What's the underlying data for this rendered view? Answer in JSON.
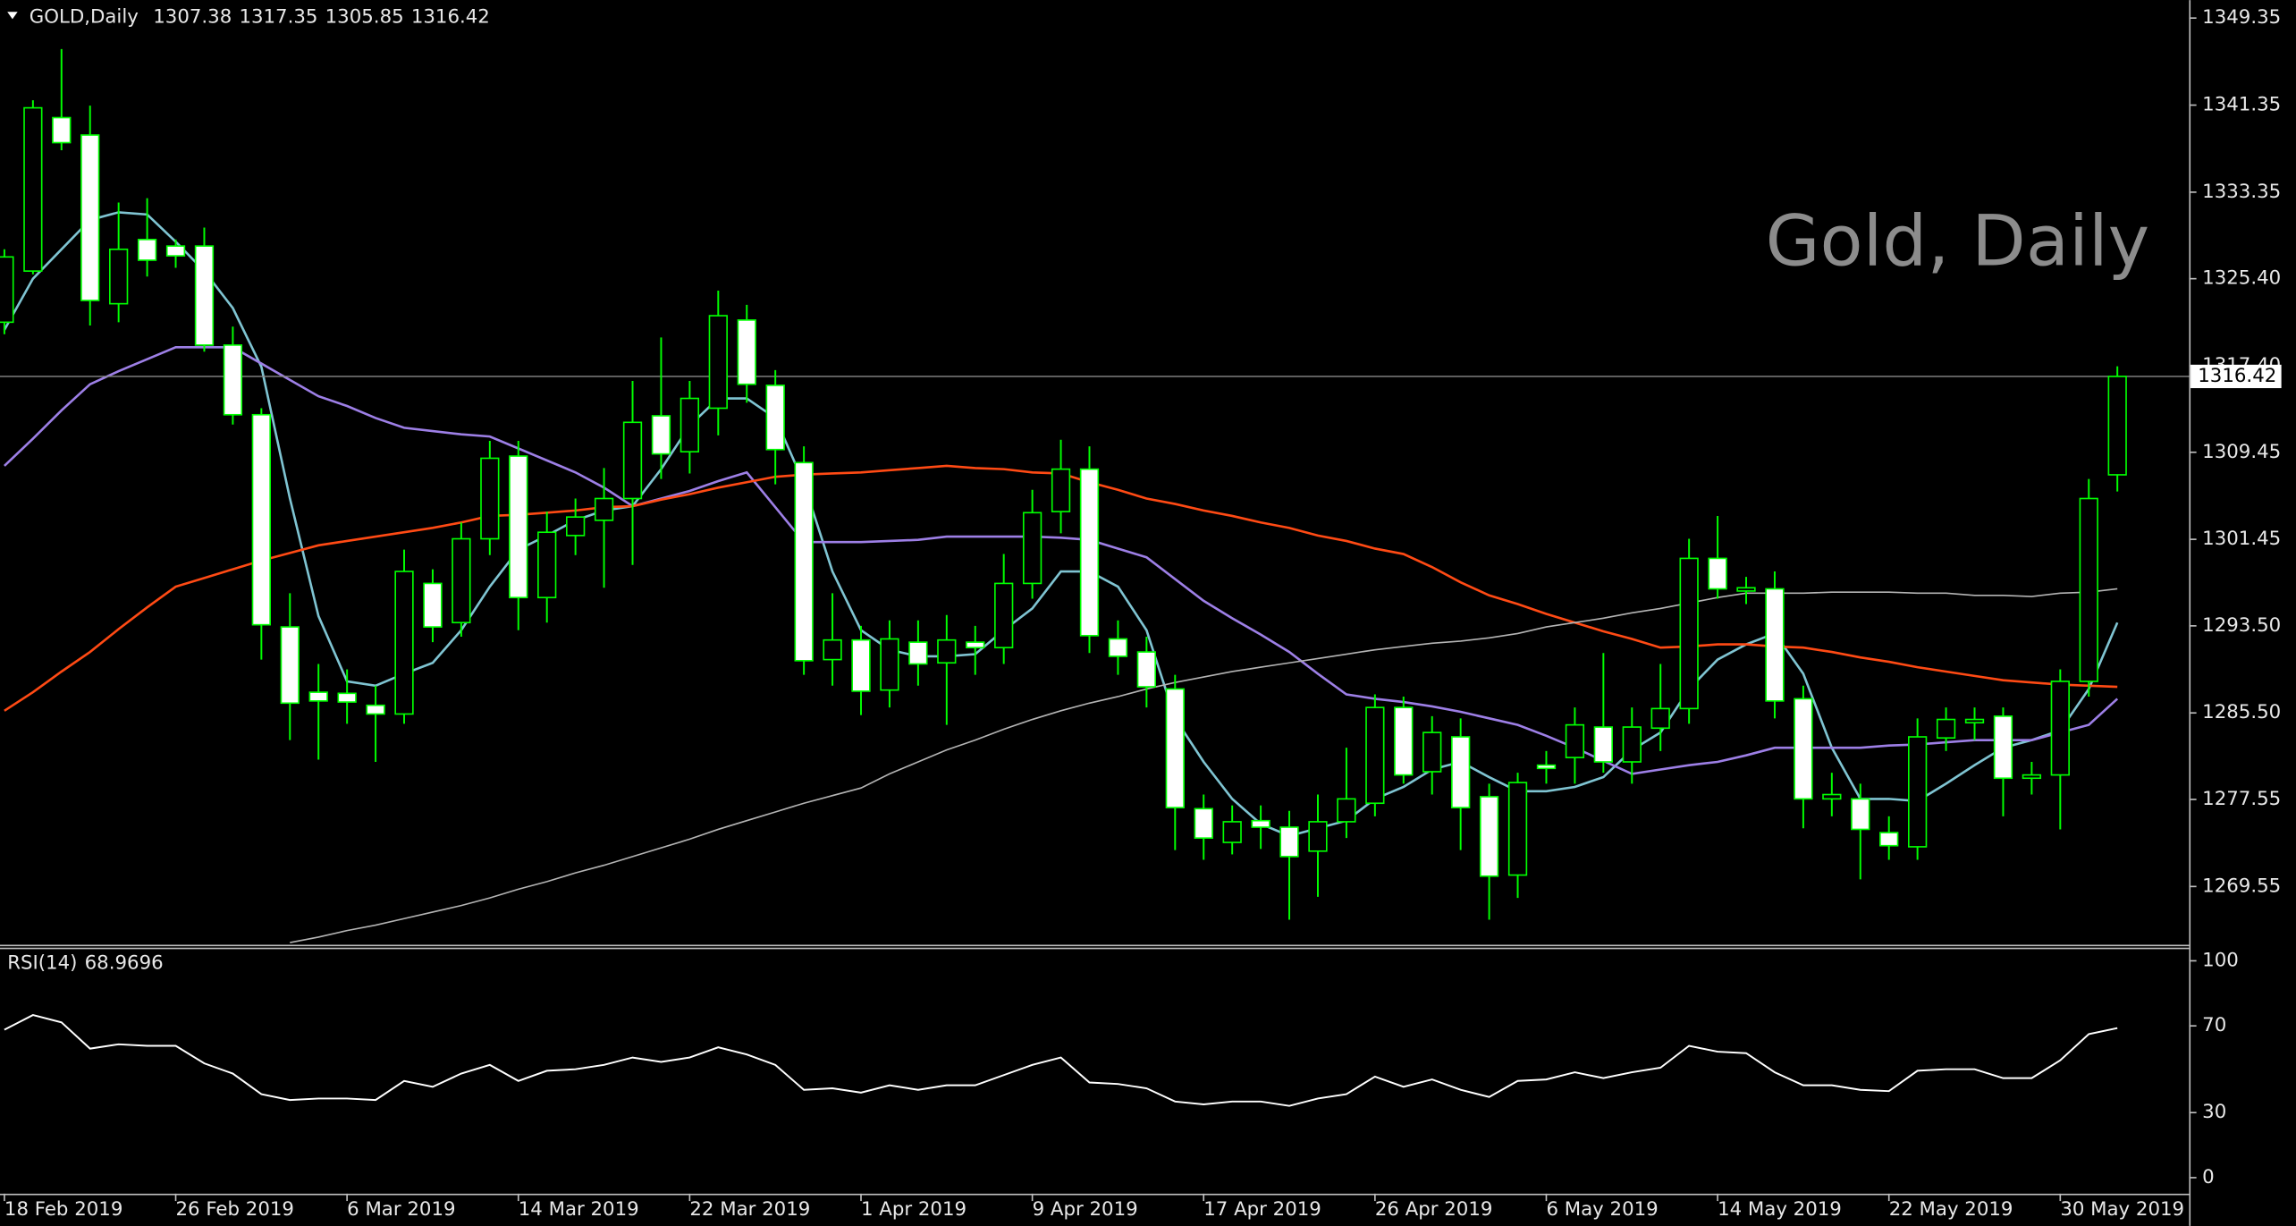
{
  "chart_data": {
    "type": "candlestick",
    "symbol": "GOLD,Daily",
    "watermark": "Gold, Daily",
    "categories": [
      "18 Feb 2019",
      null,
      null,
      null,
      null,
      null,
      "26 Feb 2019",
      null,
      null,
      null,
      null,
      null,
      "6 Mar 2019",
      null,
      null,
      null,
      null,
      null,
      "14 Mar 2019",
      null,
      null,
      null,
      null,
      null,
      "22 Mar 2019",
      null,
      null,
      null,
      null,
      null,
      "1 Apr 2019",
      null,
      null,
      null,
      null,
      null,
      "9 Apr 2019",
      null,
      null,
      null,
      null,
      null,
      "17 Apr 2019",
      null,
      null,
      null,
      null,
      null,
      "26 Apr 2019",
      null,
      null,
      null,
      null,
      null,
      "6 May 2019",
      null,
      null,
      null,
      null,
      null,
      "14 May 2019",
      null,
      null,
      null,
      null,
      null,
      "22 May 2019",
      null,
      null,
      null,
      null,
      null,
      "30 May 2019",
      null,
      null
    ],
    "open": [
      1321.4,
      1326.1,
      1340.2,
      1338.6,
      1323.1,
      1329.0,
      1328.4,
      1328.4,
      1319.3,
      1312.9,
      1293.4,
      1287.4,
      1287.3,
      1286.2,
      1285.4,
      1297.4,
      1293.8,
      1301.5,
      1309.1,
      1296.1,
      1301.8,
      1303.2,
      1305.2,
      1312.8,
      1309.5,
      1313.5,
      1321.6,
      1315.6,
      1308.5,
      1290.4,
      1292.2,
      1287.6,
      1292.0,
      1290.1,
      1292.0,
      1291.5,
      1297.4,
      1304.0,
      1307.9,
      1292.3,
      1291.1,
      1287.7,
      1276.7,
      1273.6,
      1275.6,
      1275.0,
      1272.8,
      1275.5,
      1277.2,
      1286.0,
      1280.1,
      1283.3,
      1277.8,
      1270.6,
      1280.7,
      1281.4,
      1284.2,
      1281.0,
      1284.1,
      1285.9,
      1299.7,
      1296.7,
      1296.9,
      1286.8,
      1277.6,
      1277.6,
      1274.5,
      1273.2,
      1283.2,
      1284.6,
      1285.2,
      1279.5,
      1279.8,
      1288.4,
      1307.38
    ],
    "high": [
      1328.1,
      1341.8,
      1346.5,
      1341.3,
      1332.4,
      1332.8,
      1329.0,
      1330.1,
      1321.0,
      1313.5,
      1296.5,
      1290.0,
      1289.5,
      1288.0,
      1300.5,
      1298.7,
      1303.0,
      1310.5,
      1310.5,
      1304.0,
      1305.2,
      1308.0,
      1316.0,
      1320.0,
      1316.0,
      1324.3,
      1323.0,
      1317.0,
      1310.0,
      1296.5,
      1293.5,
      1294.0,
      1294.0,
      1294.5,
      1293.5,
      1300.1,
      1306.0,
      1310.6,
      1310.0,
      1294.0,
      1292.5,
      1289.0,
      1278.0,
      1277.0,
      1277.0,
      1276.5,
      1278.0,
      1282.3,
      1287.2,
      1287.0,
      1285.2,
      1285.0,
      1279.0,
      1280.0,
      1282.0,
      1286.0,
      1291.0,
      1286.0,
      1290.0,
      1301.5,
      1303.6,
      1298.0,
      1298.5,
      1288.0,
      1280.0,
      1279.0,
      1276.0,
      1285.0,
      1286.0,
      1286.0,
      1286.0,
      1281.0,
      1289.5,
      1307.0,
      1317.35
    ],
    "low": [
      1320.3,
      1325.8,
      1337.2,
      1321.1,
      1321.4,
      1325.6,
      1326.4,
      1318.7,
      1312.0,
      1290.4,
      1283.0,
      1281.2,
      1284.5,
      1281.0,
      1284.5,
      1292.0,
      1292.5,
      1300.0,
      1293.1,
      1293.8,
      1300.0,
      1297.0,
      1299.1,
      1307.0,
      1307.5,
      1311.0,
      1314.0,
      1306.5,
      1289.0,
      1288.0,
      1285.3,
      1286.0,
      1288.0,
      1284.4,
      1289.0,
      1290.0,
      1296.0,
      1302.0,
      1291.0,
      1289.0,
      1286.0,
      1272.9,
      1272.0,
      1272.5,
      1273.0,
      1266.5,
      1268.6,
      1274.0,
      1276.0,
      1279.0,
      1278.0,
      1272.9,
      1266.5,
      1268.5,
      1279.0,
      1279.0,
      1280.0,
      1279.0,
      1282.0,
      1284.5,
      1296.0,
      1295.5,
      1285.0,
      1274.9,
      1276.0,
      1270.2,
      1272.0,
      1272.0,
      1282.0,
      1283.0,
      1276.0,
      1278.0,
      1274.8,
      1287.0,
      1305.85
    ],
    "close": [
      1327.4,
      1341.1,
      1337.9,
      1323.4,
      1328.1,
      1327.1,
      1327.5,
      1319.3,
      1312.9,
      1293.6,
      1286.4,
      1286.6,
      1286.5,
      1285.4,
      1298.5,
      1293.4,
      1301.5,
      1308.9,
      1296.1,
      1302.1,
      1303.5,
      1305.2,
      1312.2,
      1309.3,
      1314.4,
      1322.0,
      1315.7,
      1309.7,
      1290.3,
      1292.2,
      1287.5,
      1292.3,
      1290.0,
      1292.2,
      1291.5,
      1297.4,
      1303.9,
      1307.9,
      1292.6,
      1290.7,
      1287.9,
      1276.8,
      1274.0,
      1275.5,
      1275.0,
      1272.3,
      1275.5,
      1277.6,
      1286.0,
      1279.8,
      1283.7,
      1276.8,
      1270.5,
      1279.1,
      1280.4,
      1284.4,
      1281.0,
      1284.2,
      1285.9,
      1299.7,
      1296.9,
      1297.0,
      1286.6,
      1277.6,
      1278.0,
      1274.8,
      1273.3,
      1283.3,
      1284.9,
      1284.9,
      1279.5,
      1279.8,
      1288.4,
      1305.2,
      1316.42
    ],
    "candle_colors": {
      "up": "#000000",
      "down": "#ffffff",
      "outline": "#00ff00",
      "wick": "#00ff00"
    },
    "series": [
      {
        "color": "#7fc4d2",
        "values": [
          1320.7,
          1325.4,
          1328.1,
          1330.8,
          1331.5,
          1331.3,
          1328.8,
          1326.1,
          1322.7,
          1317.3,
          1305.2,
          1294.4,
          1288.4,
          1288.0,
          1289.1,
          1290.1,
          1293.1,
          1297.1,
          1300.5,
          1301.8,
          1303.2,
          1304.1,
          1304.5,
          1307.9,
          1311.9,
          1314.4,
          1314.4,
          1312.6,
          1306.6,
          1298.5,
          1293.1,
          1291.3,
          1290.7,
          1290.7,
          1290.9,
          1293.1,
          1295.1,
          1298.5,
          1298.5,
          1297.1,
          1293.1,
          1285.0,
          1281.0,
          1277.6,
          1275.3,
          1274.2,
          1274.9,
          1275.6,
          1277.6,
          1278.7,
          1280.3,
          1281.0,
          1279.6,
          1278.3,
          1278.3,
          1278.7,
          1279.6,
          1282.1,
          1283.7,
          1287.7,
          1290.4,
          1291.8,
          1292.8,
          1289.1,
          1282.3,
          1277.6,
          1277.6,
          1277.4,
          1279.0,
          1280.7,
          1282.3,
          1283.0,
          1283.9,
          1287.7,
          1293.8
        ]
      },
      {
        "color": "#9d7fe6",
        "values": [
          1308.2,
          1310.7,
          1313.3,
          1315.7,
          1316.9,
          1318.0,
          1319.1,
          1319.1,
          1319.1,
          1317.6,
          1316.1,
          1314.6,
          1313.7,
          1312.6,
          1311.7,
          1311.4,
          1311.1,
          1310.9,
          1309.8,
          1308.7,
          1307.6,
          1306.2,
          1304.5,
          1305.2,
          1305.9,
          1306.8,
          1307.6,
          1304.4,
          1301.2,
          1301.2,
          1301.2,
          1301.3,
          1301.4,
          1301.7,
          1301.7,
          1301.7,
          1301.7,
          1301.6,
          1301.4,
          1300.6,
          1299.8,
          1297.8,
          1295.8,
          1294.2,
          1292.7,
          1291.1,
          1289.1,
          1287.2,
          1286.8,
          1286.5,
          1286.1,
          1285.6,
          1285.0,
          1284.4,
          1283.4,
          1282.3,
          1281.1,
          1279.9,
          1280.3,
          1280.7,
          1281.0,
          1281.6,
          1282.3,
          1282.3,
          1282.3,
          1282.3,
          1282.5,
          1282.6,
          1282.8,
          1283.0,
          1283.0,
          1283.0,
          1283.7,
          1284.4,
          1286.8
        ]
      },
      {
        "color": "#ff4a14",
        "values": [
          1285.7,
          1287.4,
          1289.3,
          1291.1,
          1293.2,
          1295.2,
          1297.1,
          1297.9,
          1298.7,
          1299.5,
          1300.2,
          1300.9,
          1301.3,
          1301.7,
          1302.1,
          1302.5,
          1303.0,
          1303.6,
          1303.7,
          1303.9,
          1304.1,
          1304.4,
          1304.5,
          1305.1,
          1305.6,
          1306.2,
          1306.7,
          1307.2,
          1307.4,
          1307.5,
          1307.6,
          1307.8,
          1308.0,
          1308.2,
          1308.0,
          1307.9,
          1307.6,
          1307.5,
          1306.7,
          1306.0,
          1305.2,
          1304.7,
          1304.1,
          1303.6,
          1303.0,
          1302.5,
          1301.8,
          1301.3,
          1300.6,
          1300.1,
          1298.9,
          1297.5,
          1296.3,
          1295.5,
          1294.6,
          1293.8,
          1293.0,
          1292.3,
          1291.5,
          1291.6,
          1291.8,
          1291.8,
          1291.6,
          1291.5,
          1291.1,
          1290.6,
          1290.2,
          1289.7,
          1289.3,
          1288.9,
          1288.5,
          1288.3,
          1288.1,
          1288.0,
          1287.9
        ]
      },
      {
        "color": "#b4b4b4",
        "values": [
          null,
          null,
          null,
          null,
          null,
          null,
          null,
          null,
          null,
          null,
          1264.4,
          1264.9,
          1265.5,
          1266.0,
          1266.6,
          1267.2,
          1267.8,
          1268.5,
          1269.3,
          1270.0,
          1270.8,
          1271.5,
          1272.3,
          1273.1,
          1273.9,
          1274.8,
          1275.6,
          1276.4,
          1277.2,
          1277.9,
          1278.6,
          1279.9,
          1281.0,
          1282.1,
          1283.0,
          1284.0,
          1284.9,
          1285.7,
          1286.4,
          1287.0,
          1287.7,
          1288.3,
          1288.8,
          1289.3,
          1289.7,
          1290.1,
          1290.5,
          1290.9,
          1291.3,
          1291.6,
          1291.9,
          1292.1,
          1292.4,
          1292.8,
          1293.4,
          1293.8,
          1294.2,
          1294.7,
          1295.1,
          1295.6,
          1296.1,
          1296.5,
          1296.5,
          1296.5,
          1296.6,
          1296.6,
          1296.6,
          1296.5,
          1296.5,
          1296.3,
          1296.3,
          1296.2,
          1296.5,
          1296.6,
          1296.9
        ]
      }
    ],
    "ylim": [
      1264.2,
      1351.0
    ],
    "yticks": [
      1349.35,
      1341.35,
      1333.35,
      {
        "value": 1325.4,
        "label": "1325.40"
      },
      {
        "value": 1317.4,
        "label": "1317.40"
      },
      1309.45,
      1301.45,
      {
        "value": 1293.5,
        "label": "1293.50"
      },
      {
        "value": 1285.5,
        "label": "1285.50"
      },
      1277.55,
      1269.55
    ],
    "grid": true,
    "rsi": {
      "title": "RSI(14)",
      "color": "#ffffff",
      "values": [
        68.2,
        75.0,
        71.6,
        59.5,
        61.5,
        60.8,
        60.8,
        52.7,
        48.0,
        38.5,
        35.8,
        36.5,
        36.5,
        35.8,
        44.6,
        41.9,
        48.0,
        52.0,
        44.6,
        49.3,
        50.0,
        52.0,
        55.4,
        53.4,
        55.4,
        60.1,
        56.8,
        52.0,
        40.5,
        41.2,
        39.2,
        42.6,
        40.5,
        42.6,
        42.6,
        47.3,
        52.0,
        55.4,
        43.9,
        43.2,
        41.2,
        35.1,
        33.8,
        35.1,
        35.1,
        33.1,
        36.5,
        38.5,
        46.6,
        41.9,
        45.3,
        40.5,
        37.2,
        44.6,
        45.3,
        48.6,
        45.9,
        48.6,
        50.7,
        60.8,
        58.1,
        57.4,
        48.6,
        42.6,
        42.6,
        40.5,
        39.9,
        49.3,
        50.0,
        50.0,
        45.9,
        45.9,
        54.1,
        66.2,
        68.9696
      ],
      "ylim": [
        -7.4,
        105.4
      ],
      "yticks": [
        100,
        70,
        30,
        0
      ]
    }
  }
}
